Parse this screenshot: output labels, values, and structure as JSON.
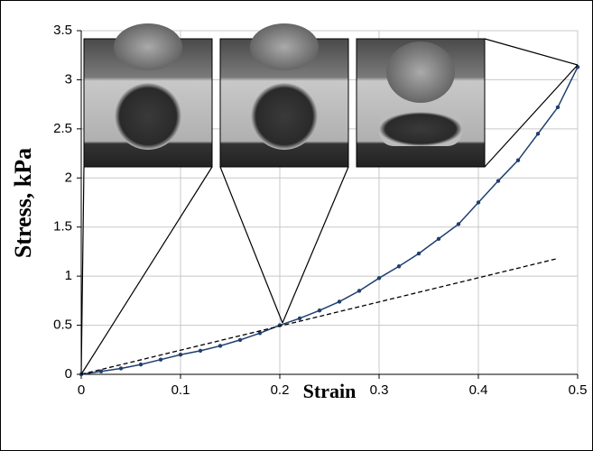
{
  "chart_data": {
    "type": "scatter",
    "xlabel": "Strain",
    "ylabel": "Stress, kPa",
    "series": [
      {
        "color": "#1f3f6e",
        "x": [
          0,
          0.02,
          0.04,
          0.06,
          0.08,
          0.1,
          0.12,
          0.14,
          0.16,
          0.18,
          0.2,
          0.22,
          0.24,
          0.26,
          0.28,
          0.3,
          0.32,
          0.34,
          0.36,
          0.38,
          0.4,
          0.42,
          0.44,
          0.46,
          0.48,
          0.5
        ],
        "values": [
          0,
          0.03,
          0.06,
          0.1,
          0.15,
          0.2,
          0.24,
          0.29,
          0.35,
          0.42,
          0.5,
          0.57,
          0.65,
          0.74,
          0.85,
          0.98,
          1.1,
          1.23,
          1.38,
          1.53,
          1.75,
          1.97,
          2.18,
          2.45,
          2.72,
          3.13
        ]
      },
      {
        "color": "#000000",
        "dash": true,
        "x": [
          0,
          0.48
        ],
        "values": [
          0,
          1.18
        ]
      }
    ],
    "xlim": [
      0,
      0.5
    ],
    "xticks": [
      0,
      0.1,
      0.2,
      0.3,
      0.4,
      0.5
    ],
    "ylim": [
      0,
      3.5
    ],
    "yticks": [
      0,
      0.5,
      1,
      1.5,
      2,
      2.5,
      3,
      3.5
    ],
    "grid": true
  }
}
